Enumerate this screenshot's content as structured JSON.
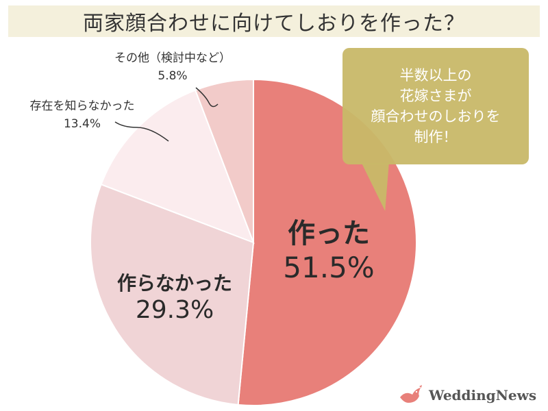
{
  "title": "両家顔合わせに向けてしおりを作った？",
  "callout": {
    "lines": [
      "半数以上の",
      "花嫁さまが",
      "顔合わせのしおりを",
      "制作！"
    ]
  },
  "chart_data": {
    "type": "pie",
    "categories": [
      "作った",
      "作らなかった",
      "存在を知らなかった",
      "その他（検討中など）"
    ],
    "values": [
      51.5,
      29.3,
      13.4,
      5.8
    ],
    "value_labels": [
      "51.5%",
      "29.3%",
      "13.4%",
      "5.8%"
    ],
    "colors": [
      "#e8807a",
      "#f0d4d6",
      "#fbecee",
      "#f2cbc9"
    ],
    "start": "12 o'clock, clockwise"
  },
  "logo": {
    "text": "WeddingNews"
  }
}
